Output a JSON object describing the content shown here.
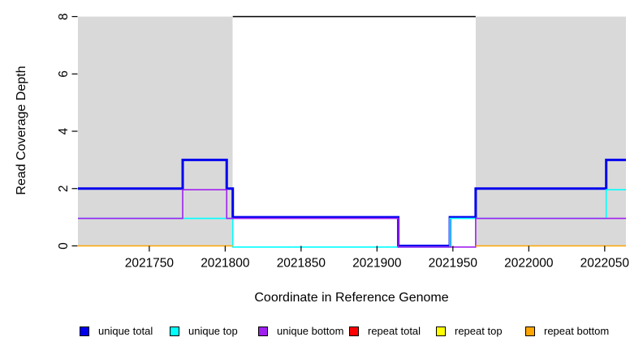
{
  "chart_data": {
    "type": "line",
    "line_style": "step",
    "title": "",
    "xlabel": "Coordinate in Reference Genome",
    "ylabel": "Read Coverage Depth",
    "xlim": [
      2021703,
      2022064
    ],
    "ylim": [
      0,
      8
    ],
    "x_ticks": [
      2021750,
      2021800,
      2021850,
      2021900,
      2021950,
      2022000,
      2022050
    ],
    "y_ticks": [
      0,
      2,
      4,
      6,
      8
    ],
    "grid": false,
    "legend_position": "bottom",
    "shaded_regions": {
      "color": "#d9d9d9",
      "y_span": [
        0,
        8
      ],
      "x_ranges": [
        [
          2021703,
          2021805
        ],
        [
          2021965,
          2022064
        ]
      ]
    },
    "top_boundary_line": {
      "color": "#000000",
      "y": 8,
      "x_range": [
        2021805,
        2021965
      ]
    },
    "series": [
      {
        "name": "unique total",
        "color": "#0000ee",
        "line_width": 3,
        "segments": [
          [
            [
              2021703,
              2
            ],
            [
              2021772,
              3
            ],
            [
              2021801,
              2
            ],
            [
              2021805,
              1
            ],
            [
              2021914,
              0
            ],
            [
              2021948,
              1
            ],
            [
              2021965,
              2
            ],
            [
              2022051,
              3
            ],
            [
              2022064,
              3
            ]
          ]
        ]
      },
      {
        "name": "unique top",
        "color": "#00ffff",
        "line_width": 1.6,
        "segments": [
          [
            [
              2021703,
              1
            ],
            [
              2021805,
              0
            ],
            [
              2021948,
              1
            ],
            [
              2022051,
              2
            ],
            [
              2022064,
              2
            ]
          ]
        ]
      },
      {
        "name": "unique bottom",
        "color": "#a020f0",
        "line_width": 1.6,
        "segments": [
          [
            [
              2021703,
              1
            ],
            [
              2021772,
              2
            ],
            [
              2021801,
              1
            ],
            [
              2021914,
              0
            ],
            [
              2021965,
              1
            ],
            [
              2022064,
              1
            ]
          ]
        ]
      },
      {
        "name": "repeat total",
        "color": "#ff0000",
        "line_width": 1.6,
        "segments": []
      },
      {
        "name": "repeat top",
        "color": "#ffff00",
        "line_width": 1.6,
        "segments": []
      },
      {
        "name": "repeat bottom",
        "color": "#ffa500",
        "line_width": 1.6,
        "segments": [
          [
            [
              2021703,
              0
            ],
            [
              2021805,
              0
            ]
          ],
          [
            [
              2021965,
              0
            ],
            [
              2022064,
              0
            ]
          ]
        ]
      }
    ]
  },
  "legend": {
    "items": [
      {
        "label": "unique total",
        "color": "#0000ee"
      },
      {
        "label": "unique top",
        "color": "#00ffff"
      },
      {
        "label": "unique bottom",
        "color": "#a020f0"
      },
      {
        "label": "repeat total",
        "color": "#ff0000"
      },
      {
        "label": "repeat top",
        "color": "#ffff00"
      },
      {
        "label": "repeat bottom",
        "color": "#ffa500"
      }
    ]
  }
}
